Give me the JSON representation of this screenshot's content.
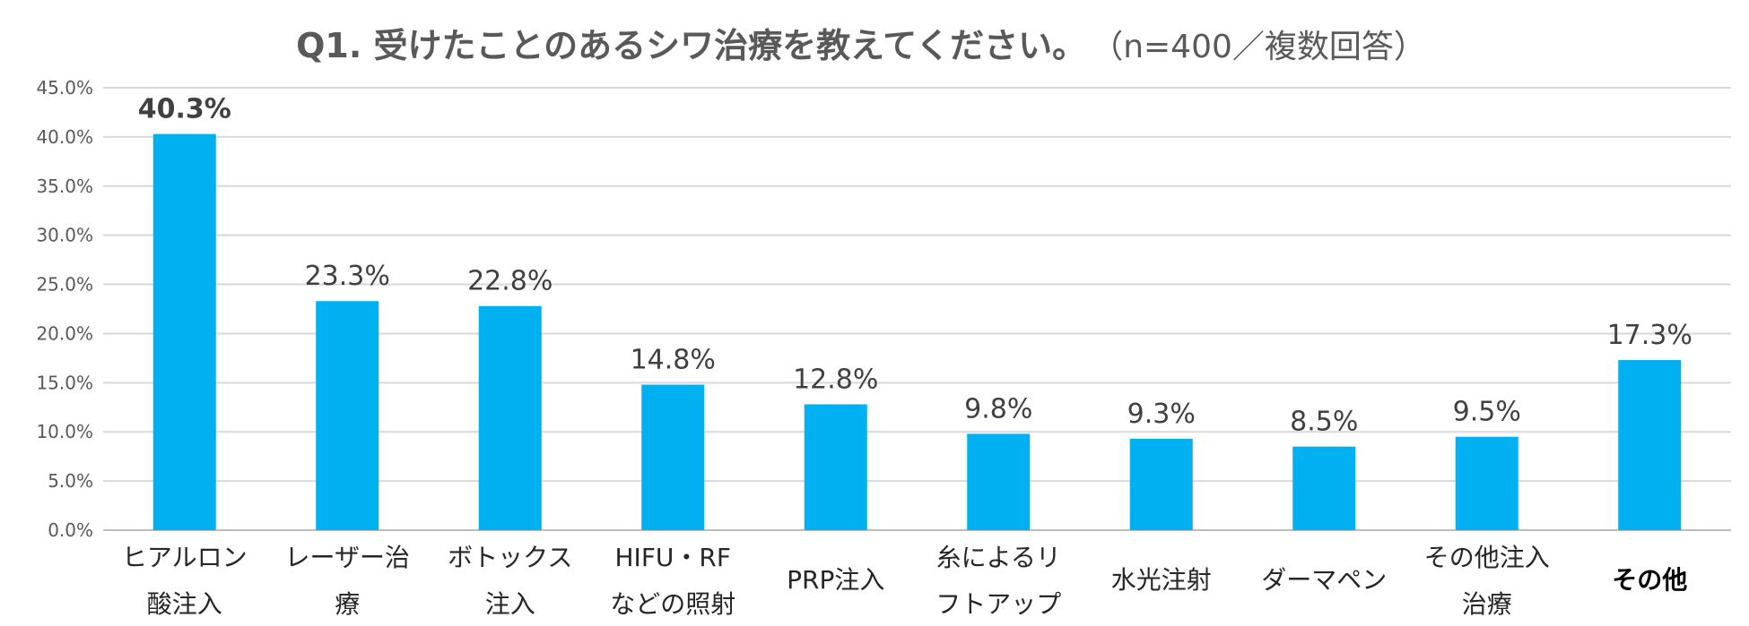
{
  "chart_data": {
    "type": "bar",
    "title": "Q1. 受けたことのあるシワ治療を教えてください。",
    "subtitle": "（n=400／複数回答）",
    "categories": [
      [
        "ヒアルロン",
        "酸注入"
      ],
      [
        "レーザー治",
        "療"
      ],
      [
        "ボトックス",
        "注入"
      ],
      [
        "HIFU・RF",
        "などの照射"
      ],
      [
        "PRP注入"
      ],
      [
        "糸によるリ",
        "フトアップ"
      ],
      [
        "水光注射"
      ],
      [
        "ダーマペン"
      ],
      [
        "その他注入",
        "治療"
      ],
      [
        "その他"
      ]
    ],
    "values": [
      40.3,
      23.3,
      22.8,
      14.8,
      12.8,
      9.8,
      9.3,
      8.5,
      9.5,
      17.3
    ],
    "value_labels": [
      "40.3%",
      "23.3%",
      "22.8%",
      "14.8%",
      "12.8%",
      "9.8%",
      "9.3%",
      "8.5%",
      "9.5%",
      "17.3%"
    ],
    "bold_value_labels": [
      0
    ],
    "bold_categories": [
      9
    ],
    "ylim": [
      0,
      45
    ],
    "yticks": [
      0,
      5,
      10,
      15,
      20,
      25,
      30,
      35,
      40,
      45
    ],
    "ytick_labels": [
      "0.0%",
      "5.0%",
      "10.0%",
      "15.0%",
      "20.0%",
      "25.0%",
      "30.0%",
      "35.0%",
      "40.0%",
      "45.0%"
    ],
    "xlabel": "",
    "ylabel": "",
    "grid": true,
    "legend": "none",
    "colors": {
      "bar": "#00b0f0",
      "title": "#595959",
      "grid": "#d9d9d9"
    }
  }
}
